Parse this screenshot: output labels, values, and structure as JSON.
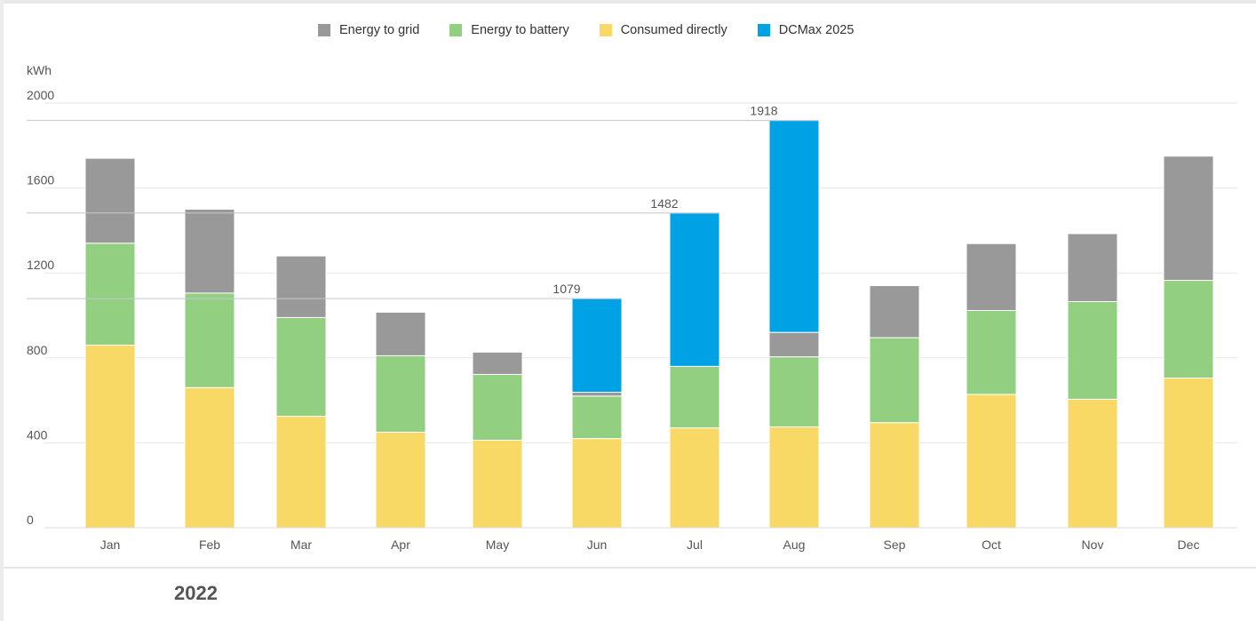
{
  "year": "2022",
  "chart_data": {
    "type": "bar",
    "stacked": true,
    "y_unit": "kWh",
    "ylim": [
      0,
      2000
    ],
    "y_ticks": [
      0,
      400,
      800,
      1200,
      1600,
      2000
    ],
    "grid": true,
    "legend_position": "top-center",
    "categories": [
      "Jan",
      "Feb",
      "Mar",
      "Apr",
      "May",
      "Jun",
      "Jul",
      "Aug",
      "Sep",
      "Oct",
      "Nov",
      "Dec"
    ],
    "series": [
      {
        "name": "Consumed directly",
        "color": "#f9d966",
        "values": [
          860,
          660,
          525,
          450,
          412,
          420,
          470,
          475,
          495,
          628,
          605,
          705
        ]
      },
      {
        "name": "Energy to battery",
        "color": "#93cf80",
        "values": [
          480,
          445,
          465,
          360,
          310,
          200,
          290,
          330,
          400,
          395,
          460,
          460
        ]
      },
      {
        "name": "Energy to grid",
        "color": "#999999",
        "values": [
          400,
          395,
          290,
          205,
          105,
          18,
          0,
          115,
          245,
          315,
          320,
          585
        ]
      },
      {
        "name": "DCMax 2025",
        "color": "#00a2e6",
        "values": [
          0,
          0,
          0,
          0,
          0,
          441,
          722,
          998,
          0,
          0,
          0,
          0
        ]
      }
    ],
    "legend_order": [
      "Energy to grid",
      "Energy to battery",
      "Consumed directly",
      "DCMax 2025"
    ],
    "annotations": [
      {
        "category": "Jun",
        "value": 1079,
        "text": "1079"
      },
      {
        "category": "Jul",
        "value": 1482,
        "text": "1482"
      },
      {
        "category": "Aug",
        "value": 1918,
        "text": "1918"
      }
    ]
  }
}
